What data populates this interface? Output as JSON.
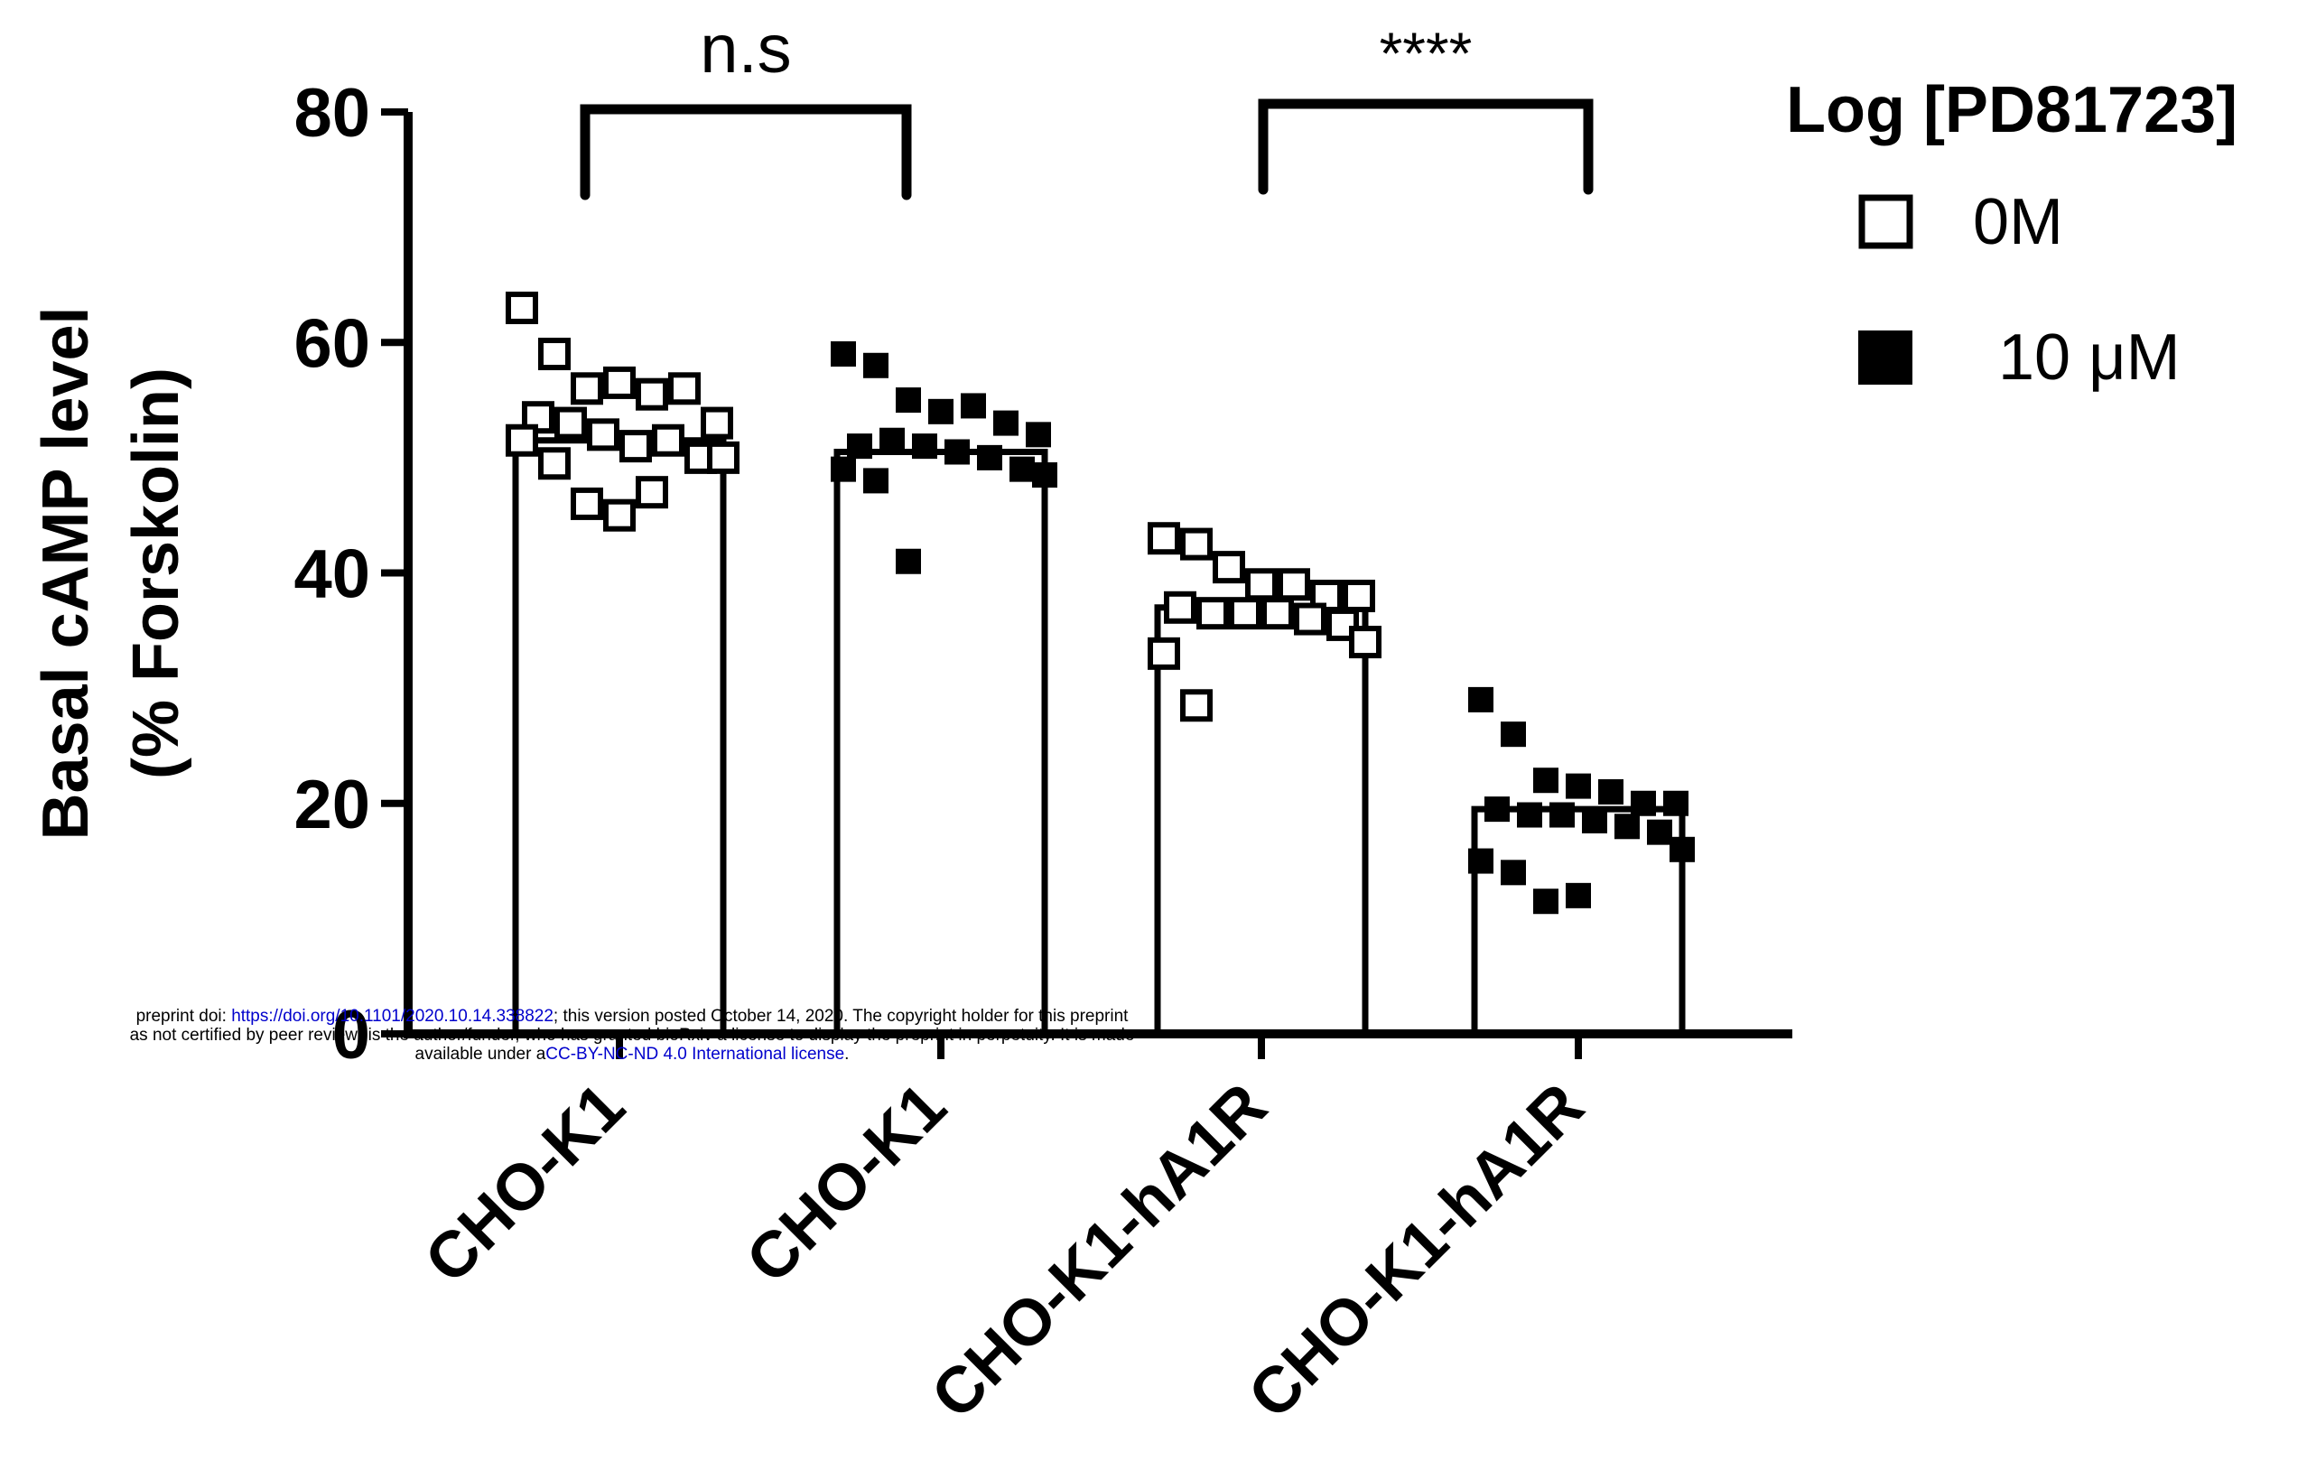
{
  "chart_data": {
    "type": "bar",
    "categories": [
      "CHO-K1",
      "CHO-K1",
      "CHO-K1-hA1R",
      "CHO-K1-hA1R"
    ],
    "conditions": [
      "0M",
      "10 μM",
      "0M",
      "10 μM"
    ],
    "values": [
      51.5,
      50.5,
      37,
      19.5
    ],
    "points": [
      [
        63,
        59,
        56,
        56.5,
        55.5,
        56,
        53,
        53.5,
        53,
        52,
        51,
        51.5,
        50,
        50,
        51.5,
        49.5,
        46,
        45,
        47
      ],
      [
        59,
        58,
        55,
        54,
        54.5,
        53,
        52,
        51,
        51.5,
        51,
        50.5,
        50,
        49,
        48.5,
        49,
        48,
        41
      ],
      [
        43,
        42.5,
        40.5,
        39,
        39,
        38,
        38,
        37,
        36.5,
        36.5,
        36.5,
        36,
        35.5,
        34,
        33,
        28.5
      ],
      [
        29,
        26,
        22,
        21.5,
        21,
        20,
        20,
        19.5,
        19,
        19,
        18.5,
        18,
        17.5,
        16,
        15,
        14,
        11.5,
        12
      ]
    ],
    "marker_fill": [
      "open",
      "filled",
      "open",
      "filled"
    ],
    "ylabel": "Basal cAMP level",
    "ylabel2": "(% Forskolin)",
    "ylim": [
      0,
      80
    ],
    "yticks": [
      0,
      20,
      40,
      60,
      80
    ],
    "grid": false,
    "legend": {
      "title": "Log [PD81723]",
      "position": "top-right",
      "entries": [
        {
          "label": "0M",
          "marker": "open-square"
        },
        {
          "label": "10 μM",
          "marker": "filled-square"
        }
      ]
    },
    "annotations": [
      {
        "label": "n.s",
        "between": [
          0,
          1
        ]
      },
      {
        "label": "****",
        "between": [
          2,
          3
        ]
      }
    ]
  },
  "preprint_notice": {
    "line1_start": "preprint doi: ",
    "line1_link": "https://doi.org/10.1101/2020.10.14.338822",
    "line1_end": "; this version posted October 14, 2020. The copyright holder for this preprint",
    "line2": "as not certified by peer review) is the author/funder, who has granted bioRxiv a license to display the preprint in perpetuity. It is made",
    "line3_start": "available under a",
    "line3_link": "CC-BY-NC-ND 4.0 International license",
    "line3_end": "."
  },
  "colors": {
    "ink": "#000000",
    "link": "#0000cc",
    "bar_fill": "#ffffff"
  }
}
